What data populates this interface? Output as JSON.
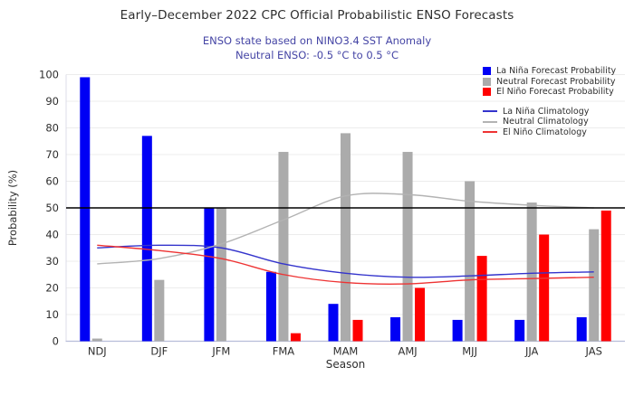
{
  "header": {
    "title": "Early–December 2022 CPC Official Probabilistic ENSO Forecasts",
    "subtitle_line1": "ENSO state based on NINO3.4 SST Anomaly",
    "subtitle_line2": "Neutral ENSO: -0.5 °C to 0.5 °C"
  },
  "colors": {
    "title_text": "#2e2e2e",
    "subtitle_text": "#4545a5",
    "tick_text": "#2e2e2e",
    "grid": "#ececec",
    "left_spine": "#dcdce8",
    "bottom_spine": "#b7bdd9",
    "reference_line": "#000000"
  },
  "chart_data": {
    "type": "bar",
    "title": "Early–December 2022 CPC Official Probabilistic ENSO Forecasts",
    "subtitle": "ENSO state based on NINO3.4 SST Anomaly — Neutral ENSO: -0.5 °C to 0.5 °C",
    "xlabel": "Season",
    "ylabel": "Probability (%)",
    "ylim": [
      0,
      100
    ],
    "ytick_step": 10,
    "grid": true,
    "legend_position": "top-right",
    "reference_line": 50,
    "categories": [
      "NDJ",
      "DJF",
      "JFM",
      "FMA",
      "MAM",
      "AMJ",
      "MJJ",
      "JJA",
      "JAS"
    ],
    "bar_series": [
      {
        "name": "La Niña Forecast Probability",
        "color": "#0000f5",
        "values": [
          99,
          77,
          50,
          26,
          14,
          9,
          8,
          8,
          9
        ]
      },
      {
        "name": "Neutral Forecast Probability",
        "color": "#ababab",
        "values": [
          1,
          23,
          50,
          71,
          78,
          71,
          60,
          52,
          42
        ]
      },
      {
        "name": "El Niño Forecast Probability",
        "color": "#ff0000",
        "values": [
          0,
          0,
          0,
          3,
          8,
          20,
          32,
          40,
          49
        ]
      }
    ],
    "line_series": [
      {
        "name": "La Niña Climatology",
        "color": "#3434cc",
        "values": [
          35,
          36,
          35,
          29,
          25.5,
          24,
          24.5,
          25.5,
          26
        ]
      },
      {
        "name": "Neutral Climatology",
        "color": "#b3b3b3",
        "values": [
          29,
          31,
          36.5,
          45.5,
          54.5,
          55,
          52.5,
          51,
          50
        ]
      },
      {
        "name": "El Niño Climatology",
        "color": "#ee3333",
        "values": [
          36,
          34,
          31,
          25,
          22,
          21.5,
          23,
          23.5,
          24
        ]
      }
    ]
  }
}
